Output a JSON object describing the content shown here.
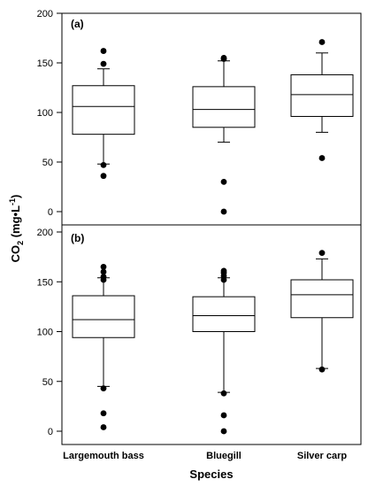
{
  "chart_data": [
    {
      "type": "box",
      "panel_label": "(a)",
      "categories": [
        "Largemouth bass",
        "Bluegill",
        "Silver carp"
      ],
      "ylim": [
        0,
        200
      ],
      "yticks": [
        0,
        50,
        100,
        150,
        200
      ],
      "boxes": [
        {
          "category": "Largemouth bass",
          "whisker_low": 48,
          "q1": 78,
          "median": 106,
          "q3": 127,
          "whisker_high": 144,
          "outliers": [
            36,
            47,
            149,
            162
          ]
        },
        {
          "category": "Bluegill",
          "whisker_low": 70,
          "q1": 85,
          "median": 103,
          "q3": 126,
          "whisker_high": 152,
          "outliers": [
            0,
            30,
            154,
            155
          ]
        },
        {
          "category": "Silver carp",
          "whisker_low": 80,
          "q1": 96,
          "median": 118,
          "q3": 138,
          "whisker_high": 160,
          "outliers": [
            54,
            171
          ]
        }
      ]
    },
    {
      "type": "box",
      "panel_label": "(b)",
      "categories": [
        "Largemouth bass",
        "Bluegill",
        "Silver carp"
      ],
      "ylim": [
        0,
        200
      ],
      "yticks": [
        0,
        50,
        100,
        150,
        200
      ],
      "boxes": [
        {
          "category": "Largemouth bass",
          "whisker_low": 45,
          "q1": 94,
          "median": 112,
          "q3": 136,
          "whisker_high": 154,
          "outliers": [
            4,
            18,
            43,
            152,
            155,
            160,
            165
          ]
        },
        {
          "category": "Bluegill",
          "whisker_low": 39,
          "q1": 100,
          "median": 116,
          "q3": 135,
          "whisker_high": 154,
          "outliers": [
            0,
            16,
            38,
            152,
            156,
            159,
            161
          ]
        },
        {
          "category": "Silver carp",
          "whisker_low": 63,
          "q1": 114,
          "median": 137,
          "q3": 152,
          "whisker_high": 173,
          "outliers": [
            62,
            179
          ]
        }
      ]
    }
  ],
  "axes": {
    "xlabel": "Species",
    "ylabel_main": "CO",
    "ylabel_sub": "2",
    "ylabel_unit_pre": " (mg•L",
    "ylabel_unit_sup": "-1",
    "ylabel_unit_post": ")"
  }
}
